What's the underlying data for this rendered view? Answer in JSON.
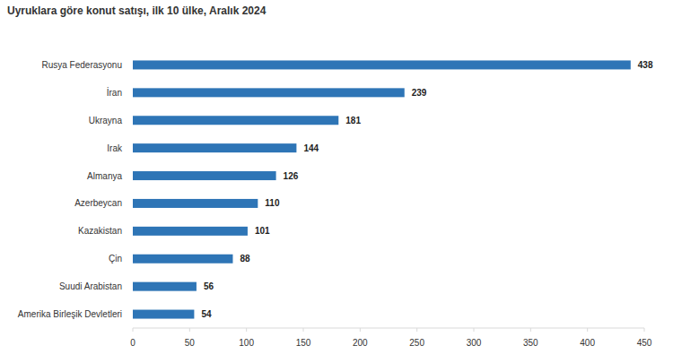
{
  "chart_data": {
    "type": "bar",
    "orientation": "horizontal",
    "title": "Uyruklara göre konut satışı, ilk 10 ülke, Aralık 2024",
    "categories": [
      "Rusya Federasyonu",
      "İran",
      "Ukrayna",
      "Irak",
      "Almanya",
      "Azerbeycan",
      "Kazakistan",
      "Çin",
      "Suudi Arabistan",
      "Amerika Birleşik Devletleri"
    ],
    "values": [
      438,
      239,
      181,
      144,
      126,
      110,
      101,
      88,
      56,
      54
    ],
    "color": "#2e75b6",
    "xlim": [
      0,
      450
    ],
    "xticks": [
      0,
      50,
      100,
      150,
      200,
      250,
      300,
      350,
      400,
      450
    ],
    "grid": false,
    "data_labels": true
  }
}
